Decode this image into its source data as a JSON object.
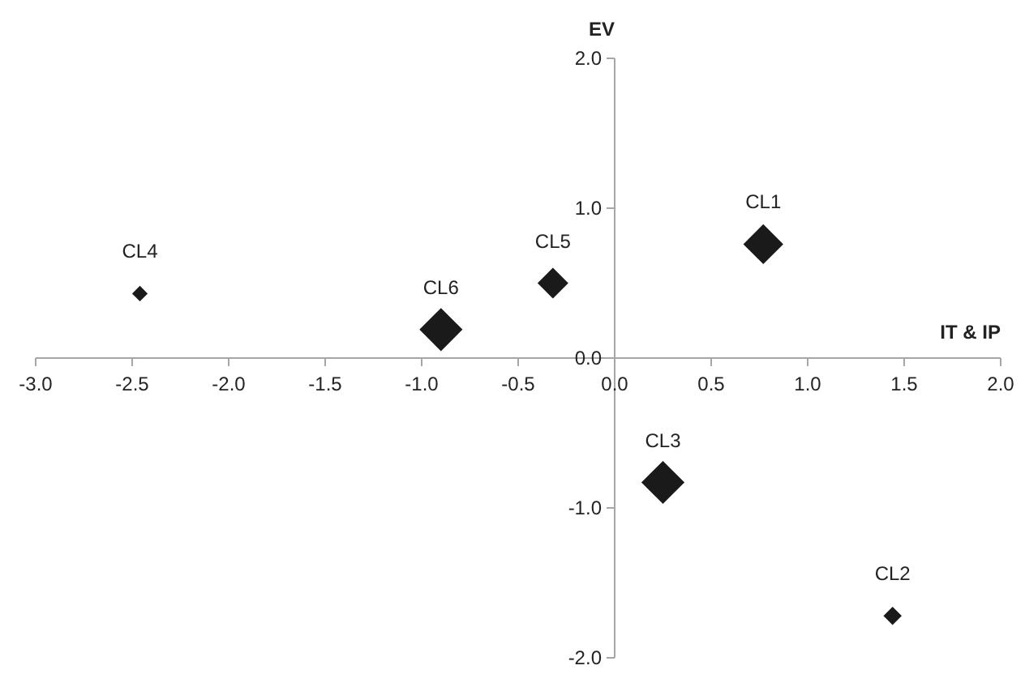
{
  "chart_data": {
    "type": "bubble",
    "xlabel": "IT & IP",
    "ylabel": "EV",
    "x": [
      0.77,
      1.44,
      0.25,
      -2.46,
      -0.32,
      -0.9
    ],
    "series": [
      {
        "color": "#1a1a1a",
        "values": [
          0.76,
          -1.72,
          -0.83,
          0.43,
          0.5,
          0.19
        ],
        "sizes": [
          0.86,
          0.18,
          1,
          0.13,
          0.51,
          1
        ]
      }
    ],
    "xlim": [
      -3,
      2
    ],
    "ylim": [
      -2,
      2
    ],
    "xticks": [
      {
        "value": -3,
        "label": "-3.0"
      },
      {
        "value": -2.5,
        "label": "-2.5"
      },
      {
        "value": -2,
        "label": "-2.0"
      },
      {
        "value": -1.5,
        "label": "-1.5"
      },
      {
        "value": -1,
        "label": "-1.0"
      },
      {
        "value": -0.5,
        "label": "-0.5"
      },
      {
        "value": 0,
        "label": "0.0"
      },
      {
        "value": 0.5,
        "label": "0.5"
      },
      {
        "value": 1,
        "label": "1.0"
      },
      {
        "value": 1.5,
        "label": "1.5"
      },
      {
        "value": 2,
        "label": "2.0"
      }
    ],
    "yticks": [
      {
        "value": -2,
        "label": "-2.0"
      },
      {
        "value": -1,
        "label": "-1.0"
      },
      {
        "value": 0,
        "label": "0.0"
      },
      {
        "value": 1,
        "label": "1.0"
      },
      {
        "value": 2,
        "label": "2.0"
      }
    ],
    "marker": "diamond",
    "grid": false,
    "annotations": [
      {
        "text": "CL1",
        "x": 0.77,
        "y": 0.76
      },
      {
        "text": "CL2",
        "x": 1.44,
        "y": -1.72
      },
      {
        "text": "CL3",
        "x": 0.25,
        "y": -0.83
      },
      {
        "text": "CL4",
        "x": -2.46,
        "y": 0.43
      },
      {
        "text": "CL5",
        "x": -0.32,
        "y": 0.5
      },
      {
        "text": "CL6",
        "x": -0.9,
        "y": 0.19
      }
    ]
  }
}
